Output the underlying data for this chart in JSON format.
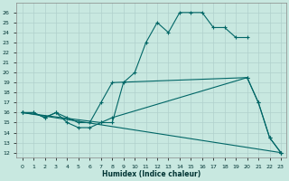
{
  "xlabel": "Humidex (Indice chaleur)",
  "background_color": "#c8e8e0",
  "line_color": "#006666",
  "grid_color": "#b0d0cc",
  "xlim": [
    -0.5,
    23.5
  ],
  "ylim": [
    11.5,
    27.0
  ],
  "xticks": [
    0,
    1,
    2,
    3,
    4,
    5,
    6,
    7,
    8,
    9,
    10,
    11,
    12,
    13,
    14,
    15,
    16,
    17,
    18,
    19,
    20,
    21,
    22,
    23
  ],
  "yticks": [
    12,
    13,
    14,
    15,
    16,
    17,
    18,
    19,
    20,
    21,
    22,
    23,
    24,
    25,
    26
  ],
  "line1_x": [
    0,
    1,
    2,
    3,
    4,
    5,
    6,
    7,
    8,
    9,
    10,
    11,
    12,
    13,
    14,
    15,
    16,
    17,
    18,
    19,
    20
  ],
  "line1_y": [
    16,
    16,
    15.5,
    16,
    15,
    14.5,
    14.5,
    15,
    15,
    19,
    20,
    23,
    25,
    24,
    26,
    26,
    26,
    24.5,
    24.5,
    23.5,
    23.5
  ],
  "line2_x": [
    0,
    1,
    2,
    3,
    4,
    5,
    6,
    7,
    8,
    20,
    21,
    22,
    23
  ],
  "line2_y": [
    16,
    16,
    15.5,
    16,
    15.5,
    15,
    15,
    17,
    19,
    19.5,
    17,
    13.5,
    12
  ],
  "line3_x": [
    0,
    7,
    8,
    20,
    21,
    22,
    23
  ],
  "line3_y": [
    16,
    15,
    15.5,
    19.5,
    17,
    13.5,
    12
  ],
  "line4_x": [
    0,
    23
  ],
  "line4_y": [
    16,
    12
  ]
}
